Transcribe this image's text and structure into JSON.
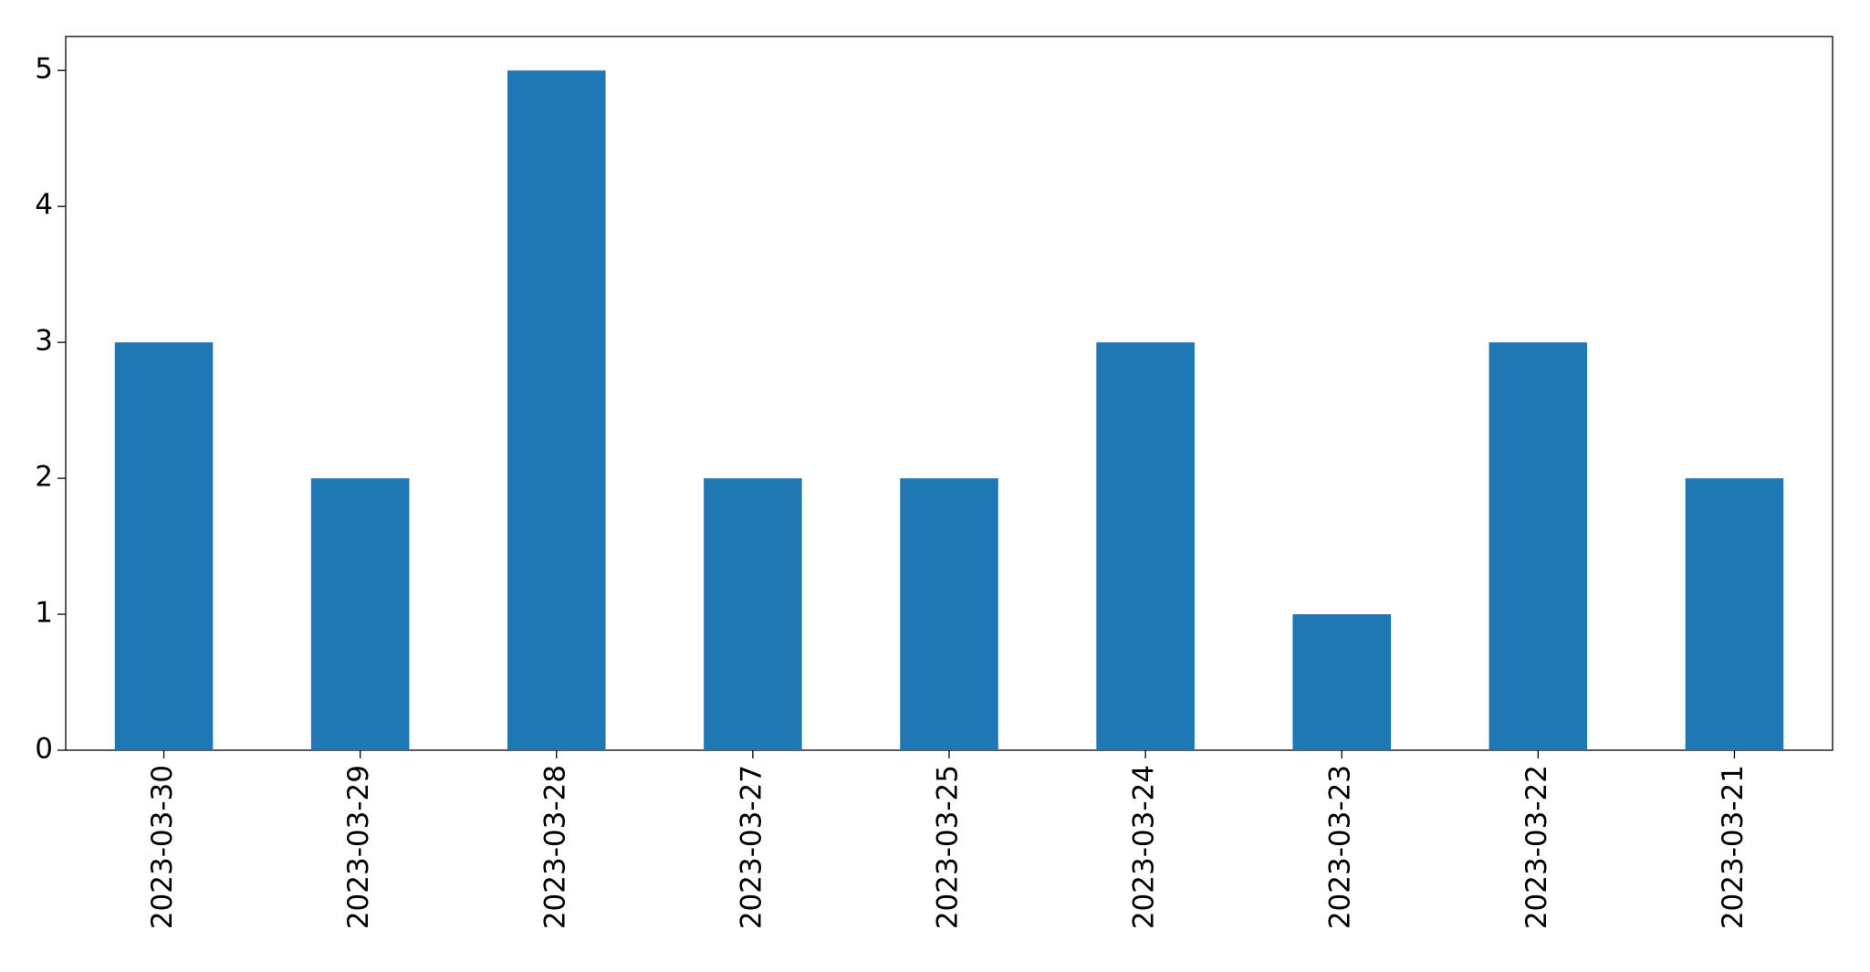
{
  "chart_data": {
    "type": "bar",
    "categories": [
      "2023-03-30",
      "2023-03-29",
      "2023-03-28",
      "2023-03-27",
      "2023-03-25",
      "2023-03-24",
      "2023-03-23",
      "2023-03-22",
      "2023-03-21"
    ],
    "values": [
      3,
      2,
      5,
      2,
      2,
      3,
      1,
      3,
      2
    ],
    "color": "#1f77b4",
    "ylim": [
      0,
      5.25
    ],
    "yticks": [
      0,
      1,
      2,
      3,
      4,
      5
    ],
    "grid": false
  }
}
